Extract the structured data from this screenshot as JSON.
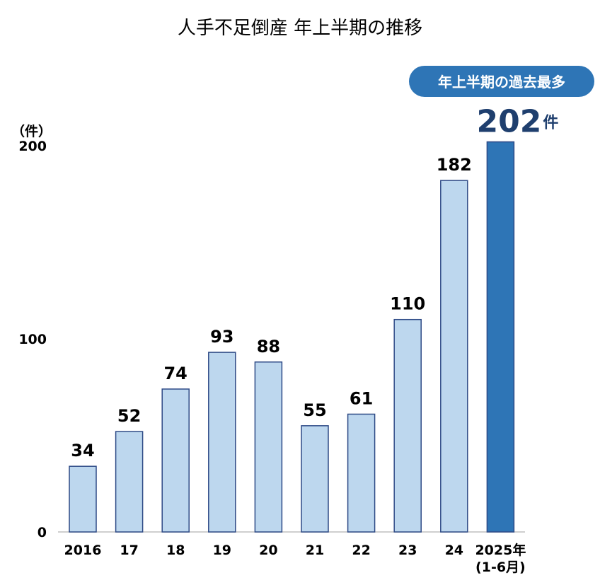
{
  "chart_data": {
    "type": "bar",
    "title": "人手不足倒産 年上半期の推移",
    "unit_label": "（件）",
    "categories": [
      "2016",
      "17",
      "18",
      "19",
      "20",
      "21",
      "22",
      "23",
      "24",
      "2025年"
    ],
    "category_sublabels": [
      "",
      "",
      "",
      "",
      "",
      "",
      "",
      "",
      "",
      "(1-6月)"
    ],
    "values": [
      34,
      52,
      74,
      93,
      88,
      55,
      61,
      110,
      182,
      202
    ],
    "value_labels": [
      "34",
      "52",
      "74",
      "93",
      "88",
      "55",
      "61",
      "110",
      "182",
      "202"
    ],
    "highlight_index": 9,
    "highlight_unit": "件",
    "highlight_badge": "年上半期の過去最多",
    "yticks": [
      "0",
      "100",
      "200"
    ],
    "ylim": [
      0,
      200
    ],
    "grid": false,
    "legend": "none",
    "colors": {
      "bar": "#bdd7ee",
      "bar_stroke": "#2e4a86",
      "highlight": "#2e75b6",
      "highlight_text": "#1f3f6e",
      "badge": "#2e75b6",
      "axis": "#bfbfbf"
    }
  }
}
